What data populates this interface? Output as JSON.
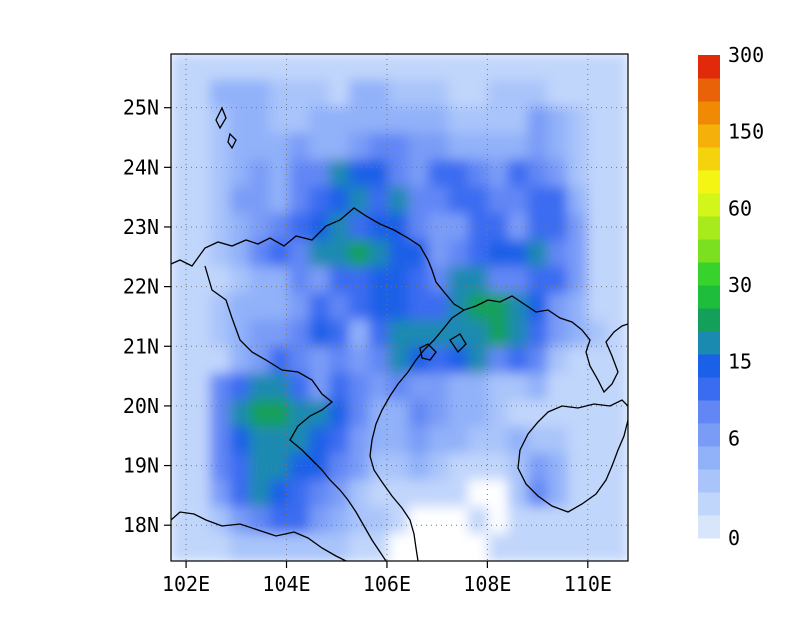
{
  "map": {
    "lon_ticks": [
      "102E",
      "104E",
      "106E",
      "108E",
      "110E"
    ],
    "lat_ticks": [
      "25N",
      "24N",
      "23N",
      "22N",
      "21N",
      "20N",
      "19N",
      "18N"
    ],
    "lon_range": [
      101.7,
      110.8
    ],
    "lat_range": [
      17.4,
      25.9
    ],
    "gridlines": "dotted"
  },
  "colorbar": {
    "labels": [
      "0",
      "6",
      "15",
      "30",
      "60",
      "150",
      "300"
    ],
    "colors": [
      "#d8e6fb",
      "#c1d6fb",
      "#a9c4fa",
      "#91b1f9",
      "#7a9cf7",
      "#6287f5",
      "#3a6cf1",
      "#1a60e8",
      "#1a8ab0",
      "#14a05a",
      "#1ebe3c",
      "#37d22b",
      "#7be020",
      "#a8eb1c",
      "#d2f51a",
      "#f5f514",
      "#f5d20e",
      "#f5b10a",
      "#f08a05",
      "#ea6207",
      "#e02a0a"
    ]
  },
  "field": {
    "cols": 23,
    "rows": 19,
    "levels": [
      "11111111111111111111111",
      "11333222133222112221111",
      "11233223333333222243211",
      "11233343345544333343211",
      "11234355877546654654211",
      "11244356786855665566311",
      "11234567867754466466411",
      "11235658898774567785411",
      "11123354667765885566411",
      "11233346567766899874311",
      "11234457636888889864321",
      "11134654545876785652111",
      "11568864654544332231111",
      "11589988753354332111111",
      "11578887643343322322111",
      "11568877542232111243111",
      "11468765421111100253111",
      "11245664322100010111111",
      "11122222211000001111111"
    ]
  }
}
